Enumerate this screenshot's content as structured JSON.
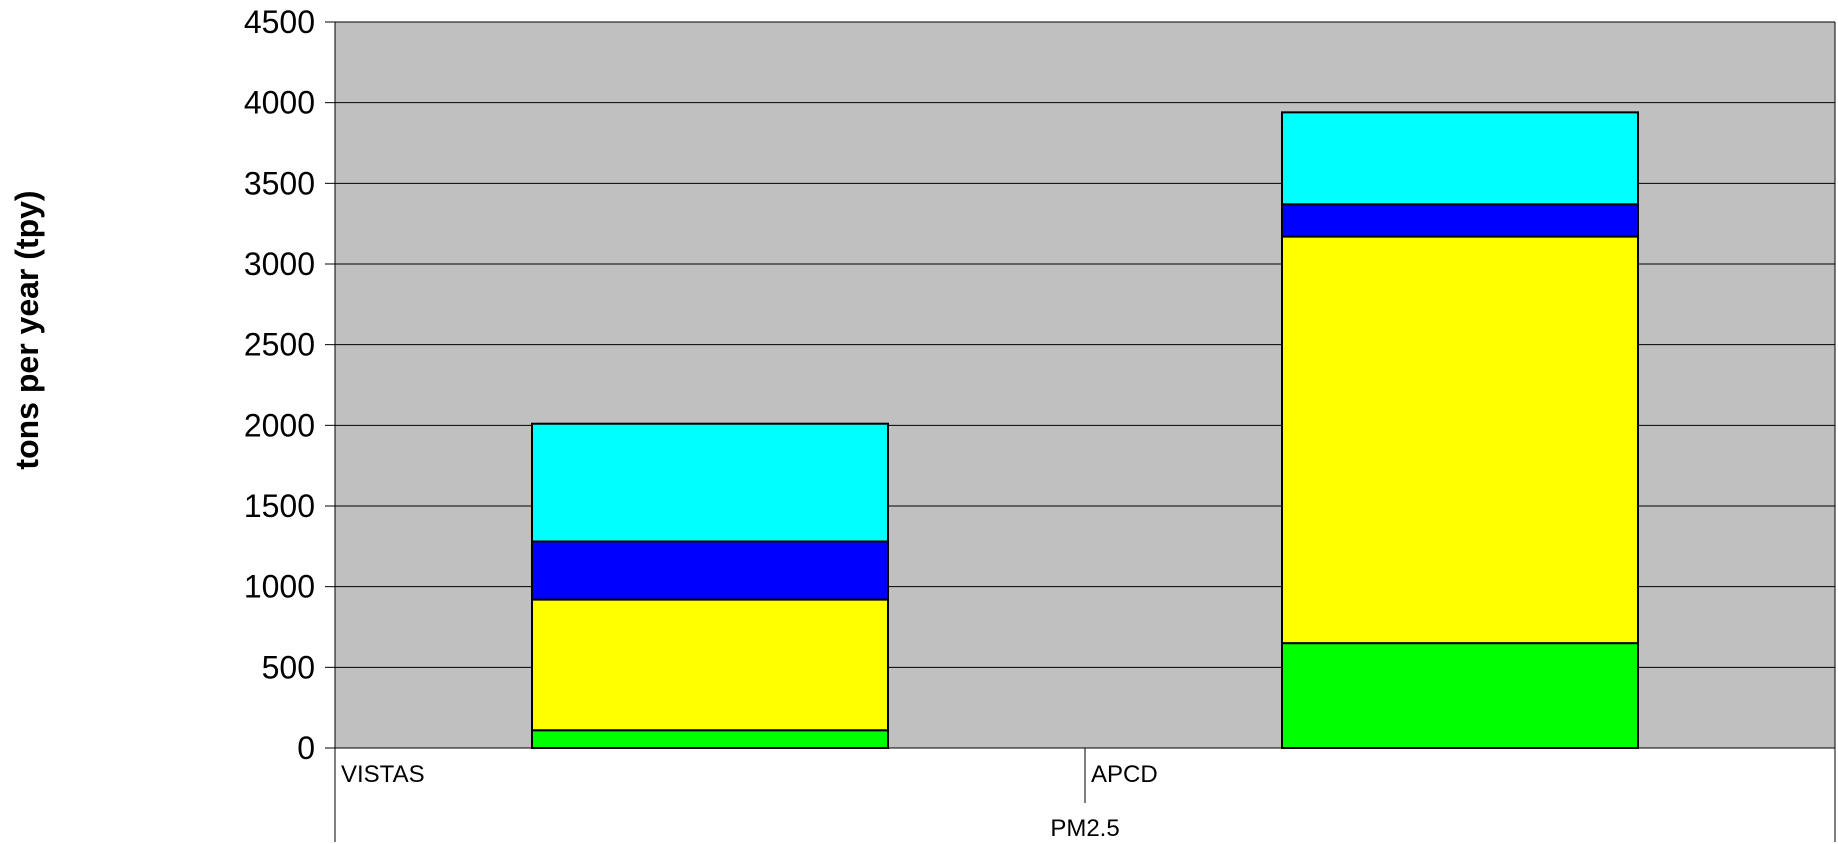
{
  "chart_data": {
    "type": "bar",
    "stacked": true,
    "ylabel": "tons per year (tpy)",
    "xlabel": "",
    "group_label": "PM2.5",
    "ylim": [
      0,
      4500
    ],
    "yticks": [
      0,
      500,
      1000,
      1500,
      2000,
      2500,
      3000,
      3500,
      4000,
      4500
    ],
    "categories": [
      "VISTAS",
      "APCD"
    ],
    "series": [
      {
        "color": "#00ff00",
        "values": [
          110,
          650
        ]
      },
      {
        "color": "#ffff00",
        "values": [
          810,
          2520
        ]
      },
      {
        "color": "#0000ff",
        "values": [
          360,
          200
        ]
      },
      {
        "color": "#00ffff",
        "values": [
          730,
          570
        ]
      }
    ],
    "grid": true,
    "legend": "none",
    "plot_background": "#c0c0c0"
  }
}
